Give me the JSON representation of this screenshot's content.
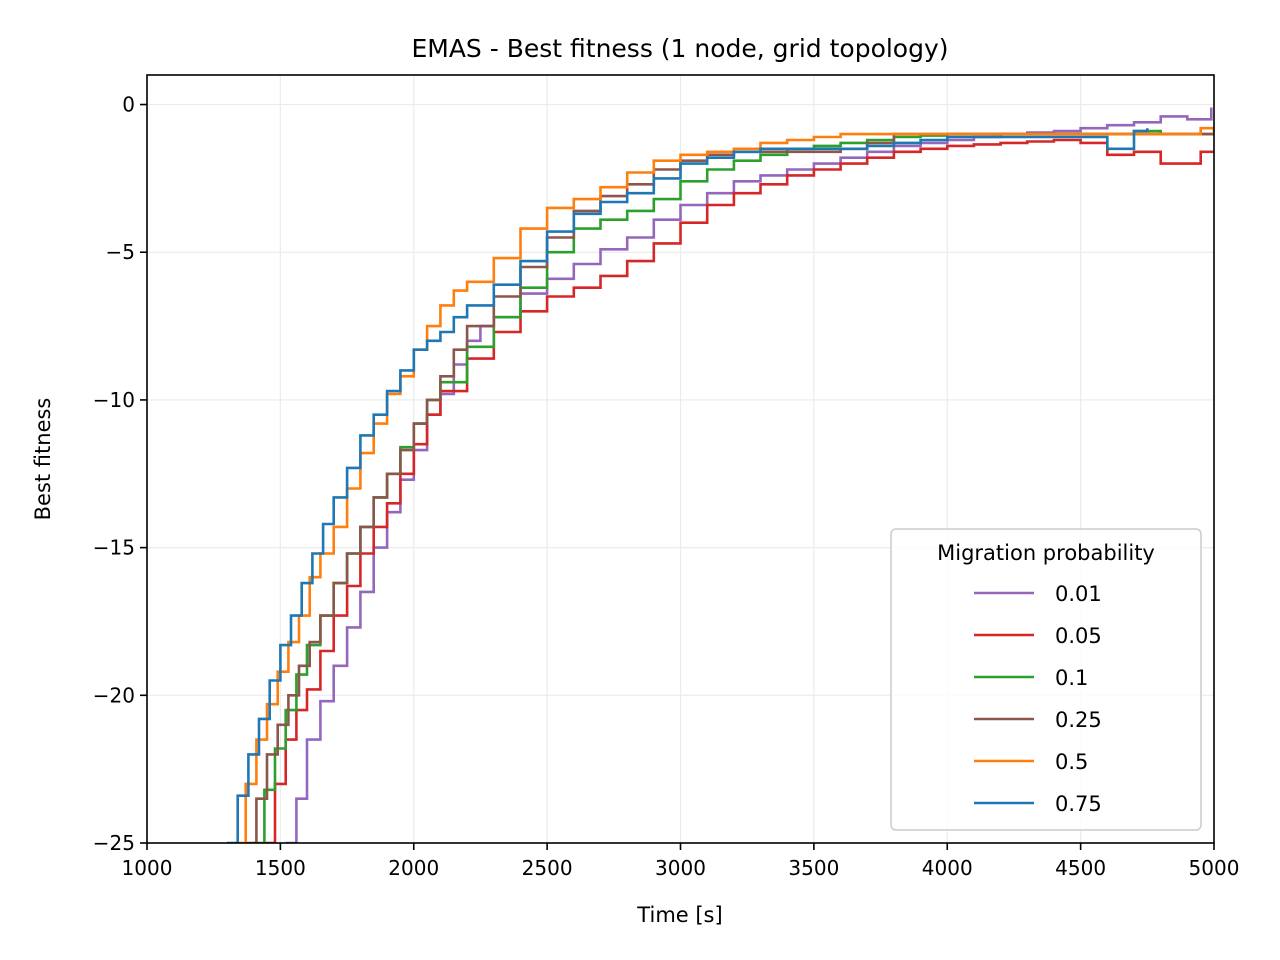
{
  "chart_data": {
    "type": "line",
    "title": "EMAS - Best fitness (1 node, grid topology)",
    "xlabel": "Time [s]",
    "ylabel": "Best fitness",
    "xlim": [
      1000,
      5000
    ],
    "ylim": [
      -25,
      1
    ],
    "xticks": [
      1000,
      1500,
      2000,
      2500,
      3000,
      3500,
      4000,
      4500,
      5000
    ],
    "yticks": [
      0,
      -5,
      -10,
      -15,
      -20,
      -25
    ],
    "xtick_labels": [
      "1000",
      "1500",
      "2000",
      "2500",
      "3000",
      "3500",
      "4000",
      "4500",
      "5000"
    ],
    "ytick_labels": [
      "0",
      "−5",
      "−10",
      "−15",
      "−20",
      "−25"
    ],
    "grid": true,
    "legend": {
      "title": "Migration probability",
      "placement": "lower-right"
    },
    "series": [
      {
        "name": "0.01",
        "color": "#9467bd",
        "x": [
          1520,
          1560,
          1600,
          1650,
          1700,
          1750,
          1800,
          1850,
          1900,
          1950,
          2000,
          2050,
          2100,
          2150,
          2200,
          2250,
          2300,
          2400,
          2500,
          2600,
          2700,
          2800,
          2900,
          3000,
          3100,
          3200,
          3300,
          3400,
          3500,
          3600,
          3700,
          3800,
          3900,
          4000,
          4100,
          4200,
          4300,
          4400,
          4500,
          4600,
          4700,
          4800,
          4900,
          4990
        ],
        "y": [
          -25,
          -23.5,
          -21.5,
          -20.2,
          -19,
          -17.7,
          -16.5,
          -15,
          -13.8,
          -12.7,
          -11.7,
          -10.5,
          -9.8,
          -8.8,
          -8.0,
          -7.5,
          -7.2,
          -6.4,
          -5.9,
          -5.4,
          -4.9,
          -4.5,
          -3.9,
          -3.4,
          -3.0,
          -2.6,
          -2.4,
          -2.2,
          -2.0,
          -1.8,
          -1.6,
          -1.4,
          -1.3,
          -1.2,
          -1.1,
          -1.0,
          -0.95,
          -0.9,
          -0.8,
          -0.7,
          -0.6,
          -0.4,
          -0.5,
          -0.1
        ]
      },
      {
        "name": "0.05",
        "color": "#d62728",
        "x": [
          1440,
          1480,
          1520,
          1560,
          1600,
          1650,
          1700,
          1750,
          1800,
          1850,
          1900,
          1950,
          2000,
          2050,
          2100,
          2200,
          2300,
          2400,
          2500,
          2600,
          2700,
          2800,
          2900,
          3000,
          3100,
          3200,
          3300,
          3400,
          3500,
          3600,
          3700,
          3800,
          3900,
          4000,
          4100,
          4200,
          4300,
          4400,
          4500,
          4600,
          4700,
          4800,
          4900,
          4950,
          5000
        ],
        "y": [
          -25,
          -23,
          -21.5,
          -20.5,
          -19.8,
          -18.5,
          -17.3,
          -16.3,
          -15.2,
          -14.3,
          -13.5,
          -12.5,
          -11.5,
          -10.5,
          -9.7,
          -8.6,
          -7.7,
          -7.0,
          -6.5,
          -6.2,
          -5.8,
          -5.3,
          -4.7,
          -4.0,
          -3.4,
          -3.0,
          -2.7,
          -2.4,
          -2.2,
          -2.0,
          -1.8,
          -1.6,
          -1.5,
          -1.4,
          -1.35,
          -1.3,
          -1.25,
          -1.2,
          -1.3,
          -1.7,
          -1.6,
          -2.0,
          -2.0,
          -1.6,
          -1.6
        ]
      },
      {
        "name": "0.1",
        "color": "#2ca02c",
        "x": [
          1400,
          1440,
          1480,
          1520,
          1560,
          1600,
          1650,
          1700,
          1750,
          1800,
          1850,
          1900,
          1950,
          2000,
          2050,
          2100,
          2200,
          2300,
          2400,
          2500,
          2600,
          2700,
          2800,
          2900,
          3000,
          3100,
          3200,
          3300,
          3400,
          3500,
          3600,
          3700,
          3800,
          3900,
          4000,
          4100,
          4200,
          4300,
          4400,
          4500,
          4600,
          4700,
          4800,
          4900,
          5000
        ],
        "y": [
          -25,
          -23.2,
          -21.8,
          -20.5,
          -19.3,
          -18.3,
          -17.3,
          -16.2,
          -15.2,
          -14.3,
          -13.3,
          -12.5,
          -11.6,
          -10.8,
          -10.0,
          -9.4,
          -8.2,
          -7.2,
          -6.2,
          -5.0,
          -4.2,
          -3.9,
          -3.6,
          -3.2,
          -2.6,
          -2.2,
          -1.9,
          -1.7,
          -1.5,
          -1.4,
          -1.3,
          -1.2,
          -1.1,
          -1.05,
          -1.0,
          -1.0,
          -1.0,
          -1.0,
          -1.0,
          -1.0,
          -1.0,
          -0.9,
          -1.0,
          -1.0,
          -1.0
        ]
      },
      {
        "name": "0.25",
        "color": "#8c564b",
        "x": [
          1370,
          1410,
          1450,
          1490,
          1530,
          1570,
          1610,
          1650,
          1700,
          1750,
          1800,
          1850,
          1900,
          1950,
          2000,
          2050,
          2100,
          2150,
          2200,
          2300,
          2400,
          2500,
          2600,
          2700,
          2800,
          2900,
          3000,
          3100,
          3200,
          3300,
          3400,
          3500,
          3600,
          3700,
          3800,
          3900,
          4000,
          4100,
          4200,
          4300,
          4400,
          4500,
          4600,
          4700,
          4800,
          4900,
          5000
        ],
        "y": [
          -25,
          -23.5,
          -22,
          -21,
          -20,
          -19,
          -18.2,
          -17.3,
          -16.2,
          -15.2,
          -14.3,
          -13.3,
          -12.5,
          -11.7,
          -10.8,
          -10.0,
          -9.2,
          -8.3,
          -7.5,
          -6.5,
          -5.5,
          -4.5,
          -3.6,
          -3.1,
          -2.7,
          -2.2,
          -1.9,
          -1.7,
          -1.6,
          -1.6,
          -1.6,
          -1.6,
          -1.5,
          -1.3,
          -1.0,
          -1.0,
          -1.0,
          -1.0,
          -1.0,
          -1.0,
          -1.0,
          -1.0,
          -1.0,
          -1.0,
          -1.0,
          -1.0,
          -1.0
        ]
      },
      {
        "name": "0.5",
        "color": "#ff7f0e",
        "x": [
          1330,
          1370,
          1410,
          1450,
          1490,
          1530,
          1570,
          1610,
          1650,
          1700,
          1750,
          1800,
          1850,
          1900,
          1950,
          2000,
          2050,
          2100,
          2150,
          2200,
          2300,
          2400,
          2500,
          2600,
          2700,
          2800,
          2900,
          3000,
          3100,
          3200,
          3300,
          3400,
          3500,
          3600,
          3700,
          3800,
          3900,
          4000,
          4100,
          4200,
          4300,
          4400,
          4500,
          4600,
          4700,
          4800,
          4900,
          4950,
          5000
        ],
        "y": [
          -25,
          -23,
          -21.5,
          -20.3,
          -19.2,
          -18.2,
          -17.3,
          -16.0,
          -15.2,
          -14.3,
          -13.0,
          -11.8,
          -10.8,
          -9.8,
          -9.2,
          -8.3,
          -7.5,
          -6.8,
          -6.3,
          -6.0,
          -5.2,
          -4.2,
          -3.5,
          -3.2,
          -2.8,
          -2.3,
          -1.9,
          -1.7,
          -1.6,
          -1.5,
          -1.3,
          -1.2,
          -1.1,
          -1.0,
          -1.0,
          -1.0,
          -1.0,
          -1.0,
          -1.0,
          -1.0,
          -1.0,
          -1.0,
          -1.0,
          -1.0,
          -1.0,
          -1.0,
          -1.0,
          -0.8,
          -1.0
        ]
      },
      {
        "name": "0.75",
        "color": "#1f77b4",
        "x": [
          1300,
          1340,
          1380,
          1420,
          1460,
          1500,
          1540,
          1580,
          1620,
          1660,
          1700,
          1750,
          1800,
          1850,
          1900,
          1950,
          2000,
          2050,
          2100,
          2150,
          2200,
          2300,
          2400,
          2500,
          2600,
          2700,
          2800,
          2900,
          3000,
          3100,
          3200,
          3300,
          3400,
          3500,
          3600,
          3700,
          3800,
          3900,
          4000,
          4100,
          4200,
          4300,
          4400,
          4500,
          4600,
          4700,
          4750
        ],
        "y": [
          -25,
          -23.4,
          -22,
          -20.8,
          -19.5,
          -18.3,
          -17.3,
          -16.2,
          -15.2,
          -14.2,
          -13.3,
          -12.3,
          -11.2,
          -10.5,
          -9.7,
          -9.0,
          -8.3,
          -8.0,
          -7.7,
          -7.2,
          -6.8,
          -6.1,
          -5.3,
          -4.3,
          -3.7,
          -3.3,
          -3.0,
          -2.5,
          -2.0,
          -1.8,
          -1.6,
          -1.5,
          -1.5,
          -1.5,
          -1.5,
          -1.4,
          -1.3,
          -1.2,
          -1.1,
          -1.1,
          -1.1,
          -1.1,
          -1.1,
          -1.1,
          -1.5,
          -0.9,
          -0.8
        ]
      }
    ]
  }
}
